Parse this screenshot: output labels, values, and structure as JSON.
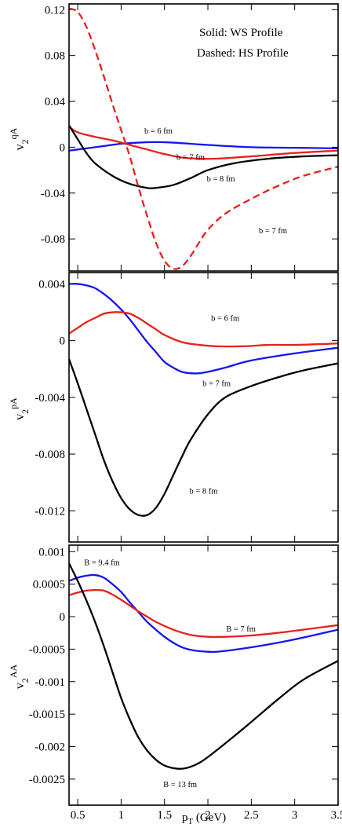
{
  "colors": {
    "black": "#000000",
    "red": "#e8201c",
    "blue": "#1414f0"
  },
  "chart_data": [
    {
      "type": "line",
      "panel": "top",
      "ylabel": {
        "main": "v",
        "sub": "2",
        "sup": "qA"
      },
      "xlim": [
        0.4,
        3.5
      ],
      "ylim": [
        -0.108,
        0.125
      ],
      "xticks": [
        0.5,
        1,
        1.5,
        2,
        2.5,
        3,
        3.5
      ],
      "yticks": [
        0.12,
        0.08,
        0.04,
        0,
        -0.04,
        -0.08
      ],
      "ytick_labels": [
        "0.12",
        "0.08",
        "0.04",
        "0",
        "-0.04",
        "-0.08"
      ],
      "legend": {
        "line1": "Solid: WS Profile",
        "line2": "Dashed: HS Profile"
      },
      "series": [
        {
          "color": "blue",
          "dash": false,
          "x": [
            0.4,
            0.6,
            0.8,
            1.0,
            1.2,
            1.4,
            1.6,
            1.8,
            2.0,
            2.5,
            3.0,
            3.5
          ],
          "y": [
            -0.003,
            -0.001,
            0.001,
            0.003,
            0.004,
            0.0045,
            0.004,
            0.003,
            0.002,
            0.0,
            -0.0005,
            -0.001
          ]
        },
        {
          "color": "red",
          "dash": false,
          "x": [
            0.4,
            0.5,
            0.7,
            0.9,
            1.1,
            1.3,
            1.5,
            1.7,
            1.9,
            2.1,
            2.5,
            3.0,
            3.5
          ],
          "y": [
            0.018,
            0.013,
            0.009,
            0.006,
            0.002,
            -0.002,
            -0.006,
            -0.009,
            -0.01,
            -0.01,
            -0.008,
            -0.005,
            -0.003
          ]
        },
        {
          "color": "black",
          "dash": false,
          "x": [
            0.4,
            0.5,
            0.6,
            0.7,
            0.9,
            1.1,
            1.3,
            1.4,
            1.6,
            1.8,
            2.0,
            2.3,
            2.7,
            3.1,
            3.5
          ],
          "y": [
            0.019,
            0.007,
            -0.005,
            -0.014,
            -0.025,
            -0.032,
            -0.0355,
            -0.0355,
            -0.033,
            -0.027,
            -0.02,
            -0.014,
            -0.01,
            -0.008,
            -0.007
          ]
        },
        {
          "color": "red",
          "dash": true,
          "x": [
            0.4,
            0.5,
            0.6,
            0.7,
            0.8,
            0.9,
            1.0,
            1.1,
            1.2,
            1.3,
            1.4,
            1.5,
            1.6,
            1.7,
            1.8,
            1.9,
            2.0,
            2.2,
            2.5,
            2.8,
            3.1,
            3.5
          ],
          "y": [
            0.121,
            0.118,
            0.105,
            0.085,
            0.062,
            0.038,
            0.015,
            -0.008,
            -0.035,
            -0.06,
            -0.083,
            -0.099,
            -0.106,
            -0.104,
            -0.095,
            -0.083,
            -0.072,
            -0.058,
            -0.045,
            -0.034,
            -0.025,
            -0.017
          ]
        }
      ],
      "annotations": [
        {
          "text": "b = 6 fm",
          "x": 1.43,
          "y": 0.012
        },
        {
          "text": "b = 7 fm",
          "x": 1.8,
          "y": -0.011
        },
        {
          "text": "b = 8 fm",
          "x": 2.15,
          "y": -0.03
        },
        {
          "text": "b = 7 fm",
          "x": 2.75,
          "y": -0.075
        }
      ]
    },
    {
      "type": "line",
      "panel": "middle",
      "ylabel": {
        "main": "v",
        "sub": "2",
        "sup": "pA"
      },
      "xlim": [
        0.4,
        3.5
      ],
      "ylim": [
        -0.0142,
        0.0048
      ],
      "xticks": [
        0.5,
        1,
        1.5,
        2,
        2.5,
        3,
        3.5
      ],
      "yticks": [
        0.004,
        0,
        -0.004,
        -0.008,
        -0.012
      ],
      "ytick_labels": [
        "0.004",
        "0",
        "-0.004",
        "-0.008",
        "-0.012"
      ],
      "series": [
        {
          "color": "blue",
          "dash": false,
          "x": [
            0.4,
            0.5,
            0.6,
            0.7,
            0.8,
            0.9,
            1.0,
            1.1,
            1.2,
            1.3,
            1.4,
            1.5,
            1.6,
            1.7,
            1.8,
            1.9,
            2.0,
            2.2,
            2.5,
            3.0,
            3.5
          ],
          "y": [
            0.004,
            0.004,
            0.0039,
            0.0037,
            0.0033,
            0.0028,
            0.0022,
            0.0015,
            0.0007,
            -0.0001,
            -0.0008,
            -0.0015,
            -0.0019,
            -0.0022,
            -0.0023,
            -0.0023,
            -0.0022,
            -0.0019,
            -0.0014,
            -0.0009,
            -0.0005
          ]
        },
        {
          "color": "red",
          "dash": false,
          "x": [
            0.4,
            0.5,
            0.6,
            0.7,
            0.8,
            0.9,
            1.0,
            1.1,
            1.2,
            1.3,
            1.4,
            1.5,
            1.7,
            1.9,
            2.1,
            2.4,
            2.7,
            3.0,
            3.5
          ],
          "y": [
            0.0005,
            0.0009,
            0.0013,
            0.0016,
            0.0019,
            0.002,
            0.002,
            0.0019,
            0.0016,
            0.0012,
            0.0008,
            0.0004,
            -0.0001,
            -0.0003,
            -0.0004,
            -0.0004,
            -0.0003,
            -0.0003,
            -0.0002
          ]
        },
        {
          "color": "black",
          "dash": false,
          "x": [
            0.4,
            0.5,
            0.6,
            0.7,
            0.8,
            0.9,
            1.0,
            1.1,
            1.2,
            1.3,
            1.4,
            1.5,
            1.6,
            1.7,
            1.8,
            2.0,
            2.2,
            2.5,
            2.8,
            3.1,
            3.5
          ],
          "y": [
            -0.0013,
            -0.003,
            -0.0048,
            -0.0066,
            -0.0084,
            -0.0099,
            -0.0111,
            -0.0119,
            -0.0123,
            -0.0123,
            -0.0118,
            -0.0108,
            -0.0095,
            -0.0082,
            -0.007,
            -0.0052,
            -0.004,
            -0.0032,
            -0.0026,
            -0.0021,
            -0.0016
          ]
        }
      ],
      "annotations": [
        {
          "text": "b = 6 fm",
          "x": 2.2,
          "y": 0.0014
        },
        {
          "text": "b = 7 fm",
          "x": 2.1,
          "y": -0.0032
        },
        {
          "text": "b = 8 fm",
          "x": 1.95,
          "y": -0.0108
        }
      ]
    },
    {
      "type": "line",
      "panel": "bottom",
      "ylabel": {
        "main": "v",
        "sub": "2",
        "sup": "AA"
      },
      "xlim": [
        0.4,
        3.5
      ],
      "ylim": [
        -0.0029,
        0.0011
      ],
      "xticks": [
        0.5,
        1,
        1.5,
        2,
        2.5,
        3,
        3.5
      ],
      "xtick_labels": [
        "0.5",
        "1",
        "1.5",
        "2",
        "2.5",
        "3",
        "3.5"
      ],
      "yticks": [
        0.001,
        0.0005,
        0,
        -0.0005,
        -0.001,
        -0.0015,
        -0.002,
        -0.0025
      ],
      "ytick_labels": [
        "0.001",
        "0.0005",
        "0",
        "-0.0005",
        "-0.001",
        "-0.0015",
        "-0.002",
        "-0.0025"
      ],
      "xlabel": {
        "main": "p",
        "sub": "T",
        "rest": " (GeV)"
      },
      "series": [
        {
          "color": "blue",
          "dash": false,
          "x": [
            0.4,
            0.5,
            0.6,
            0.7,
            0.8,
            0.9,
            1.0,
            1.1,
            1.2,
            1.3,
            1.4,
            1.5,
            1.6,
            1.7,
            1.8,
            1.9,
            2.0,
            2.1,
            2.3,
            2.6,
            3.0,
            3.5
          ],
          "y": [
            0.00055,
            0.0006,
            0.00063,
            0.00064,
            0.0006,
            0.0005,
            0.00038,
            0.00022,
            7e-05,
            -8e-05,
            -0.0002,
            -0.00031,
            -0.0004,
            -0.00047,
            -0.00051,
            -0.00053,
            -0.00054,
            -0.00054,
            -0.00051,
            -0.00045,
            -0.00035,
            -0.0002
          ]
        },
        {
          "color": "red",
          "dash": false,
          "x": [
            0.4,
            0.5,
            0.6,
            0.7,
            0.8,
            0.9,
            1.0,
            1.1,
            1.2,
            1.3,
            1.4,
            1.6,
            1.8,
            2.0,
            2.2,
            2.5,
            2.8,
            3.1,
            3.5
          ],
          "y": [
            0.00033,
            0.00037,
            0.0004,
            0.00041,
            0.0004,
            0.00034,
            0.00026,
            0.00017,
            8e-05,
            0.0,
            -8e-05,
            -0.0002,
            -0.00028,
            -0.00031,
            -0.00031,
            -0.00029,
            -0.00025,
            -0.0002,
            -0.00013
          ]
        },
        {
          "color": "black",
          "dash": false,
          "x": [
            0.4,
            0.5,
            0.6,
            0.7,
            0.8,
            0.9,
            1.0,
            1.1,
            1.2,
            1.3,
            1.4,
            1.5,
            1.6,
            1.7,
            1.8,
            1.9,
            2.0,
            2.2,
            2.5,
            2.8,
            3.1,
            3.5
          ],
          "y": [
            0.00082,
            0.00055,
            0.00025,
            -8e-05,
            -0.00045,
            -0.00085,
            -0.00125,
            -0.00158,
            -0.00186,
            -0.00206,
            -0.0022,
            -0.00229,
            -0.00233,
            -0.00234,
            -0.00231,
            -0.00225,
            -0.00216,
            -0.00195,
            -0.00162,
            -0.00128,
            -0.00097,
            -0.00068
          ]
        }
      ],
      "annotations": [
        {
          "text": "B = 9.4 fm",
          "x": 0.78,
          "y": 0.00079
        },
        {
          "text": "B = 7 fm",
          "x": 2.38,
          "y": -0.00023
        },
        {
          "text": "B = 13 fm",
          "x": 1.68,
          "y": -0.00262
        }
      ]
    }
  ]
}
